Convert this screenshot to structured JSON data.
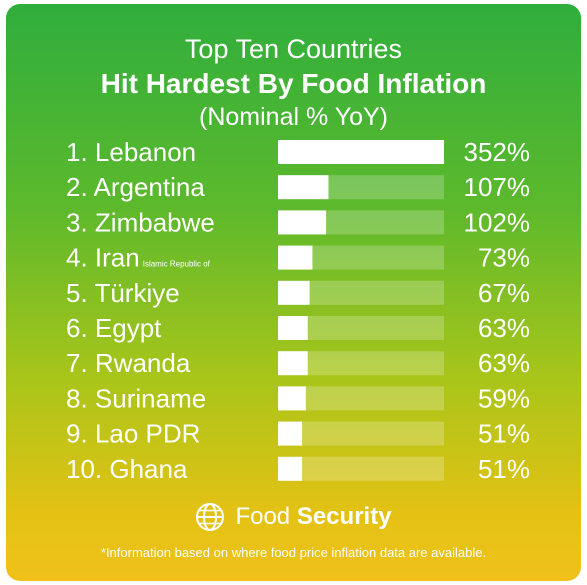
{
  "title_line1": "Top Ten Countries",
  "title_line2": "Hit Hardest By Food Inflation",
  "title_line3": "(Nominal % YoY)",
  "chart_data": {
    "type": "bar",
    "orientation": "horizontal",
    "categories": [
      "Lebanon",
      "Argentina",
      "Zimbabwe",
      "Iran",
      "Türkiye",
      "Egypt",
      "Rwanda",
      "Suriname",
      "Lao PDR",
      "Ghana"
    ],
    "ranks": [
      "1.",
      "2.",
      "3.",
      "4.",
      "5.",
      "6.",
      "7.",
      "8.",
      "9.",
      "10."
    ],
    "category_suffixes": [
      "",
      "",
      "",
      "Islamic Republic of",
      "",
      "",
      "",
      "",
      "",
      ""
    ],
    "values": [
      352,
      107,
      102,
      73,
      67,
      63,
      63,
      59,
      51,
      51
    ],
    "value_labels": [
      "352%",
      "107%",
      "102%",
      "73%",
      "67%",
      "63%",
      "63%",
      "59%",
      "51%",
      "51%"
    ],
    "xlim": [
      0,
      352
    ],
    "grid": false,
    "legend": "none",
    "bar_color": "#ffffff",
    "track_color": "#ffffff"
  },
  "footer": {
    "logo_icon": "globe-icon",
    "brand_light": "Food",
    "brand_bold": "Security"
  },
  "note": "*Information based on where food price inflation data are available."
}
